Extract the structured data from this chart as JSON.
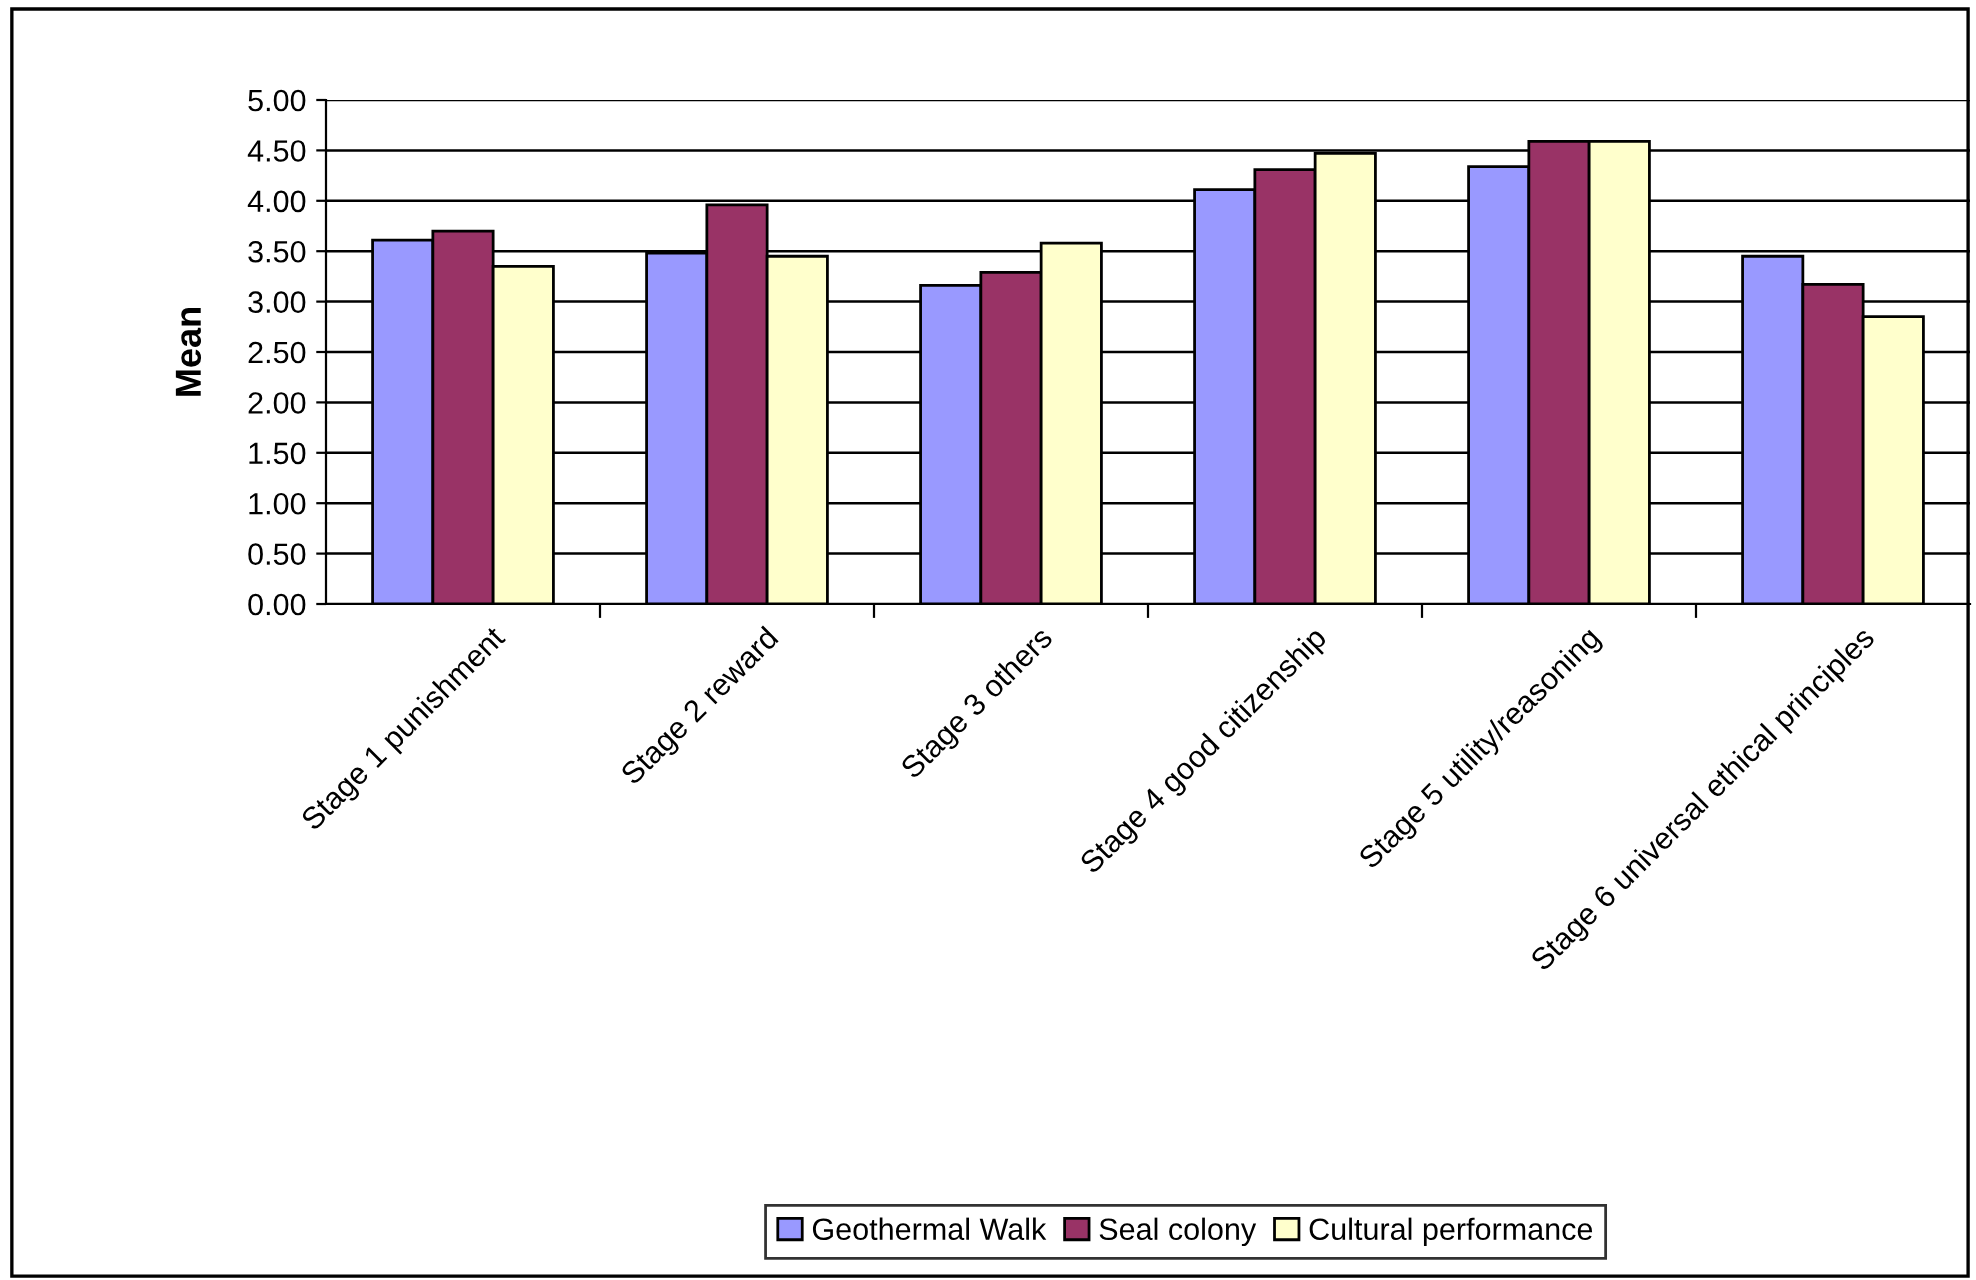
{
  "chart_data": {
    "type": "bar",
    "ylabel": "Mean",
    "categories": [
      "Stage 1 punishment",
      "Stage 2 reward",
      "Stage 3 others",
      "Stage 4 good citizenship",
      "Stage 5 utility/reasoning",
      "Stage 6 universal ethical principles"
    ],
    "series": [
      {
        "name": "Geothermal Walk",
        "color": "#9999ff",
        "values": [
          3.61,
          3.48,
          3.16,
          4.11,
          4.34,
          3.45
        ]
      },
      {
        "name": "Seal colony",
        "color": "#993366",
        "values": [
          3.7,
          3.96,
          3.29,
          4.31,
          4.59,
          3.17
        ]
      },
      {
        "name": "Cultural performance",
        "color": "#ffffcc",
        "values": [
          3.35,
          3.45,
          3.58,
          4.47,
          4.59,
          2.85
        ]
      }
    ],
    "ylim": [
      0,
      5
    ],
    "yticks": [
      {
        "value": 0,
        "label": "0.00"
      },
      {
        "value": 0.5,
        "label": "0.50"
      },
      {
        "value": 1,
        "label": "1.00"
      },
      {
        "value": 1.5,
        "label": "1.50"
      },
      {
        "value": 2,
        "label": "2.00"
      },
      {
        "value": 2.5,
        "label": "2.50"
      },
      {
        "value": 3,
        "label": "3.00"
      },
      {
        "value": 3.5,
        "label": "3.50"
      },
      {
        "value": 4,
        "label": "4.00"
      },
      {
        "value": 4.5,
        "label": "4.50"
      },
      {
        "value": 5,
        "label": "5.00"
      }
    ],
    "grid": "y",
    "legend": "bottom"
  }
}
